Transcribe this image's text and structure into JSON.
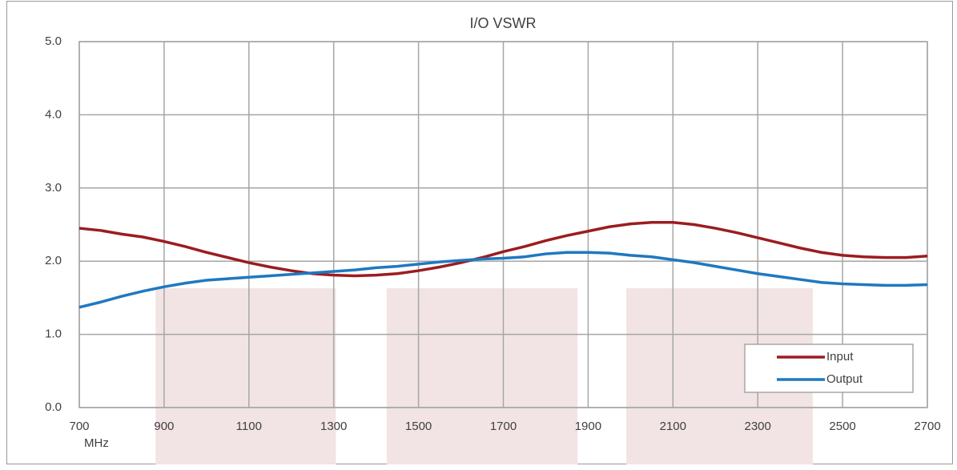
{
  "chart_data": {
    "type": "line",
    "title": "I/O VSWR",
    "x_label": "MHz",
    "x": [
      700,
      750,
      800,
      850,
      900,
      950,
      1000,
      1050,
      1100,
      1150,
      1200,
      1250,
      1300,
      1350,
      1400,
      1450,
      1500,
      1550,
      1600,
      1650,
      1700,
      1750,
      1800,
      1850,
      1900,
      1950,
      2000,
      2050,
      2100,
      2150,
      2200,
      2250,
      2300,
      2350,
      2400,
      2450,
      2500,
      2550,
      2600,
      2650,
      2700
    ],
    "series": [
      {
        "name": "Input",
        "color": "#9b1c20",
        "values": [
          2.45,
          2.42,
          2.37,
          2.33,
          2.27,
          2.2,
          2.12,
          2.05,
          1.98,
          1.92,
          1.87,
          1.83,
          1.81,
          1.8,
          1.81,
          1.83,
          1.87,
          1.92,
          1.98,
          2.05,
          2.13,
          2.2,
          2.28,
          2.35,
          2.41,
          2.47,
          2.51,
          2.53,
          2.53,
          2.5,
          2.45,
          2.39,
          2.32,
          2.25,
          2.18,
          2.12,
          2.08,
          2.06,
          2.05,
          2.05,
          2.07
        ]
      },
      {
        "name": "Output",
        "color": "#1f78c1",
        "values": [
          1.37,
          1.44,
          1.52,
          1.59,
          1.65,
          1.7,
          1.74,
          1.76,
          1.78,
          1.8,
          1.82,
          1.84,
          1.86,
          1.88,
          1.91,
          1.93,
          1.96,
          1.99,
          2.01,
          2.03,
          2.04,
          2.06,
          2.1,
          2.12,
          2.12,
          2.11,
          2.08,
          2.06,
          2.02,
          1.98,
          1.93,
          1.88,
          1.83,
          1.79,
          1.75,
          1.71,
          1.69,
          1.68,
          1.67,
          1.67,
          1.68
        ]
      }
    ],
    "bands": [
      [
        880,
        1305
      ],
      [
        1425,
        1875
      ],
      [
        1990,
        2430
      ]
    ],
    "band_top": 1.63,
    "band_color": "#f2e4e4",
    "xlim": [
      700,
      2700
    ],
    "xticks": [
      700,
      900,
      1100,
      1300,
      1500,
      1700,
      1900,
      2100,
      2300,
      2500,
      2700
    ],
    "ylim": [
      0,
      5
    ],
    "yticks": [
      {
        "value": 0,
        "label": "0.0"
      },
      {
        "value": 1,
        "label": "1.0"
      },
      {
        "value": 2,
        "label": "2.0"
      },
      {
        "value": 3,
        "label": "3.0"
      },
      {
        "value": 4,
        "label": "4.0"
      },
      {
        "value": 5,
        "label": "5.0"
      }
    ],
    "grid": true,
    "legend": "lower right"
  }
}
